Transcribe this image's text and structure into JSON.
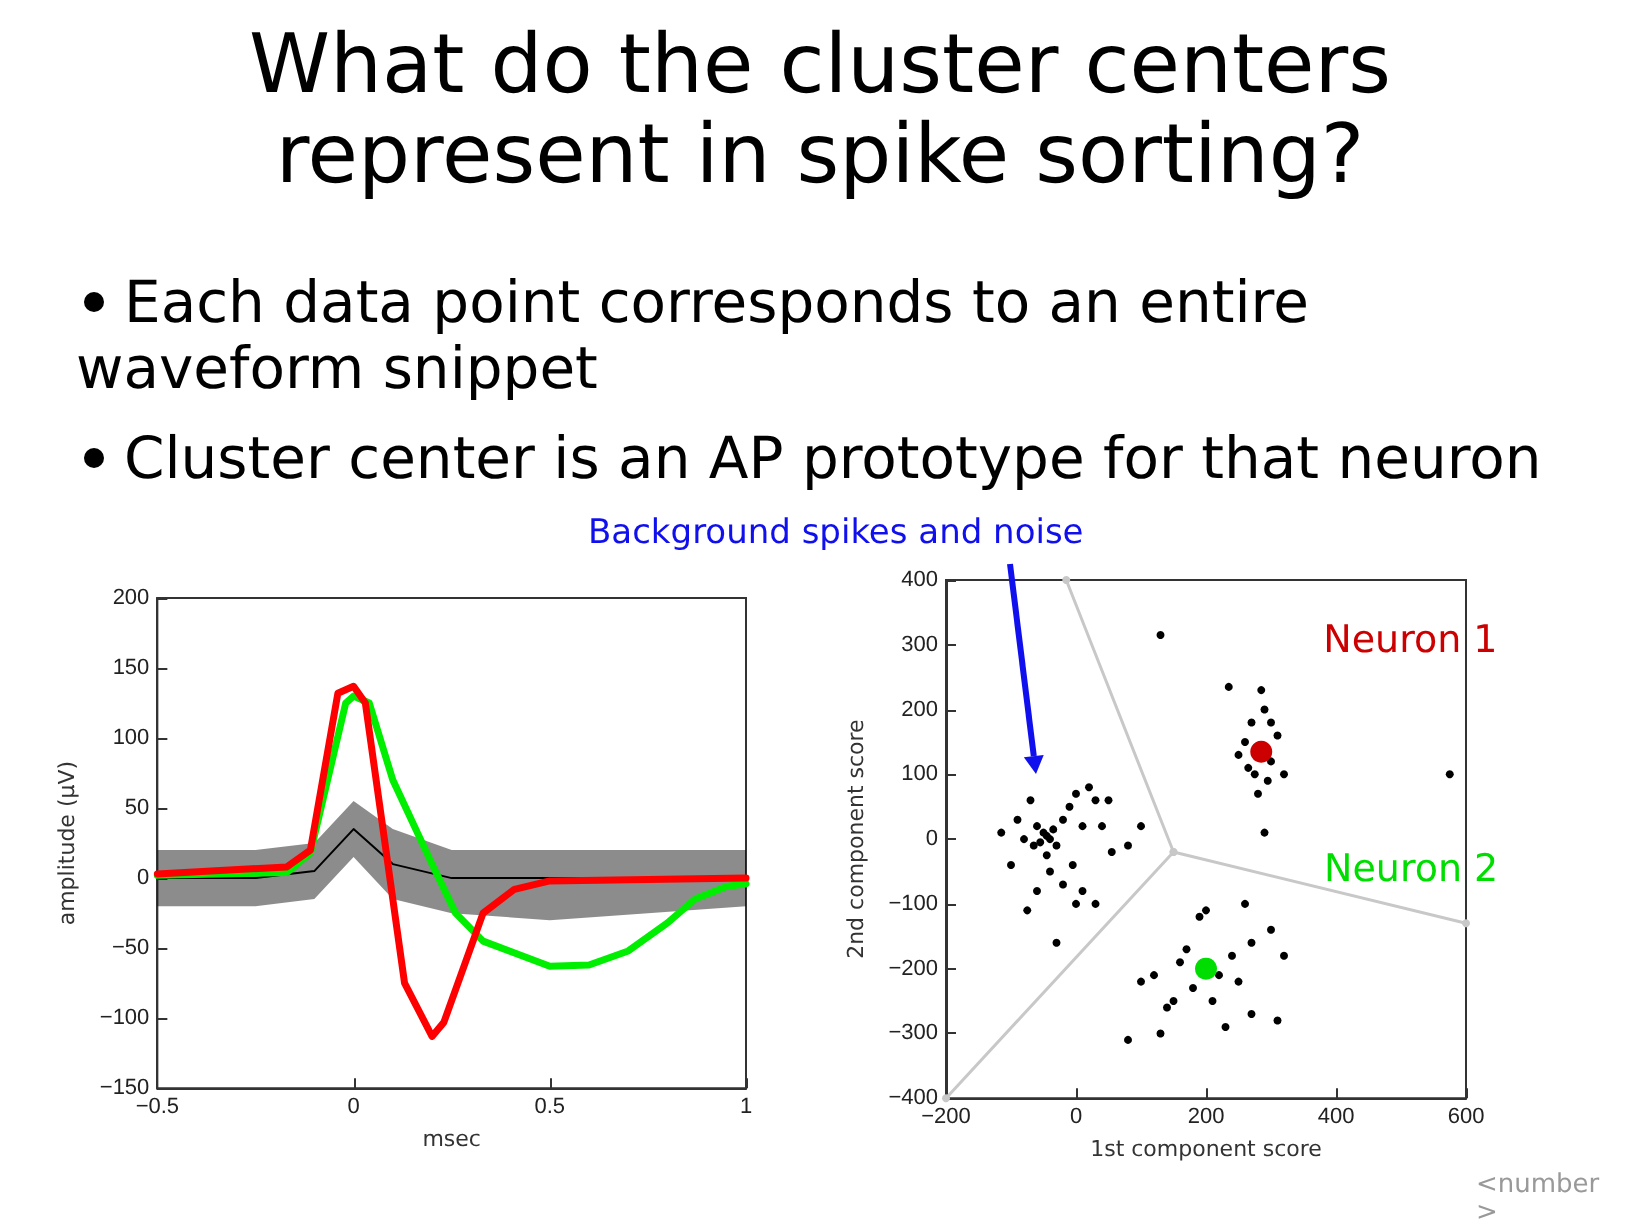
{
  "chart_data": [
    {
      "type": "line",
      "title": "What do the cluster centers represent in spike sorting?",
      "annotations": [
        "Each data point corresponds to an entire waveform snippet",
        "Cluster center is an AP prototype for that neuron"
      ],
      "xlabel": "msec",
      "ylabel": "amplitude (μV)",
      "xlim": [
        -0.5,
        1
      ],
      "xticks": [
        -0.5,
        0,
        0.5,
        1
      ],
      "ylim": [
        -150,
        200
      ],
      "yticks": [
        -150,
        -100,
        -50,
        0,
        50,
        100,
        150,
        200
      ],
      "grid": false,
      "legend": false,
      "marker": "none",
      "line_style": "solid",
      "series": [
        {
          "color": "#000000",
          "x": [
            -0.5,
            -0.25,
            -0.1,
            0,
            0.1,
            0.25,
            0.5,
            0.75,
            1
          ],
          "values": [
            0,
            0,
            5,
            35,
            10,
            0,
            0,
            0,
            0
          ],
          "lower": [
            -20,
            -20,
            -15,
            15,
            -15,
            -25,
            -30,
            -25,
            -20
          ],
          "upper": [
            20,
            20,
            25,
            55,
            35,
            20,
            20,
            20,
            20
          ]
        },
        {
          "color": "#00ee00",
          "x": [
            -0.5,
            -0.17,
            -0.11,
            -0.02,
            0,
            0.04,
            0.1,
            0.2,
            0.26,
            0.33,
            0.5,
            0.6,
            0.7,
            0.8,
            0.87,
            0.95,
            1
          ],
          "values": [
            2,
            4,
            18,
            125,
            130,
            125,
            70,
            10,
            -25,
            -45,
            -63,
            -62,
            -52,
            -32,
            -15,
            -6,
            -4
          ]
        },
        {
          "color": "#ff0000",
          "x": [
            -0.5,
            -0.17,
            -0.11,
            -0.04,
            0,
            0.03,
            0.13,
            0.2,
            0.23,
            0.33,
            0.41,
            0.5,
            1
          ],
          "values": [
            3,
            8,
            20,
            132,
            137,
            125,
            -75,
            -113,
            -103,
            -25,
            -8,
            -2,
            0
          ]
        }
      ]
    },
    {
      "type": "scatter",
      "annotations": [
        "Background spikes and noise",
        "<number>"
      ],
      "xlabel": "1st component score",
      "ylabel": "2nd component score",
      "xlim": [
        -200,
        600
      ],
      "xticks": [
        -200,
        0,
        200,
        400,
        600
      ],
      "ylim": [
        -400,
        400
      ],
      "yticks": [
        -400,
        -300,
        -200,
        -100,
        0,
        100,
        200,
        300,
        400
      ],
      "grid": false,
      "legend": false,
      "marker": "circle",
      "line_style": "solid",
      "series": [
        {
          "type": "line",
          "color": "#c8c8c8",
          "x": [
            -15,
            150,
            600
          ],
          "values": [
            400,
            -20,
            -130
          ]
        },
        {
          "type": "line",
          "color": "#c8c8c8",
          "x": [
            150,
            -200
          ],
          "values": [
            -20,
            -400
          ]
        },
        {
          "color": "#000000",
          "x": [
            -45,
            -50,
            -40,
            -55,
            -35,
            -60,
            -30,
            -45,
            -65,
            -20,
            -10,
            0,
            20,
            30,
            10,
            -5,
            -40,
            -80,
            -90,
            -70,
            -100,
            -20,
            10,
            40,
            55,
            50,
            80,
            100,
            -60,
            -115,
            0,
            -30,
            30,
            -75,
            270,
            290,
            275,
            300,
            260,
            310,
            280,
            295,
            265,
            285,
            250,
            320,
            300,
            235,
            290,
            575,
            130,
            180,
            220,
            160,
            240,
            150,
            120,
            210,
            250,
            270,
            300,
            320,
            190,
            100,
            140,
            230,
            270,
            310,
            80,
            130,
            170,
            200,
            260
          ],
          "values": [
            5,
            10,
            0,
            -5,
            15,
            20,
            -10,
            -25,
            -10,
            30,
            50,
            70,
            80,
            60,
            20,
            -40,
            -50,
            0,
            30,
            60,
            -40,
            -70,
            -80,
            20,
            -20,
            60,
            -10,
            20,
            -80,
            10,
            -100,
            -160,
            -100,
            -110,
            180,
            200,
            100,
            120,
            150,
            160,
            70,
            90,
            110,
            230,
            130,
            100,
            180,
            235,
            10,
            100,
            315,
            -230,
            -210,
            -190,
            -180,
            -250,
            -210,
            -250,
            -220,
            -160,
            -140,
            -180,
            -120,
            -220,
            -260,
            -290,
            -270,
            -280,
            -310,
            -300,
            -170,
            -110,
            -100
          ]
        },
        {
          "name": "Neuron 1",
          "color": "#cc0000",
          "x": [
            285
          ],
          "values": [
            135
          ]
        },
        {
          "name": "Neuron 2",
          "color": "#00dd00",
          "x": [
            200
          ],
          "values": [
            -200
          ]
        }
      ]
    }
  ]
}
